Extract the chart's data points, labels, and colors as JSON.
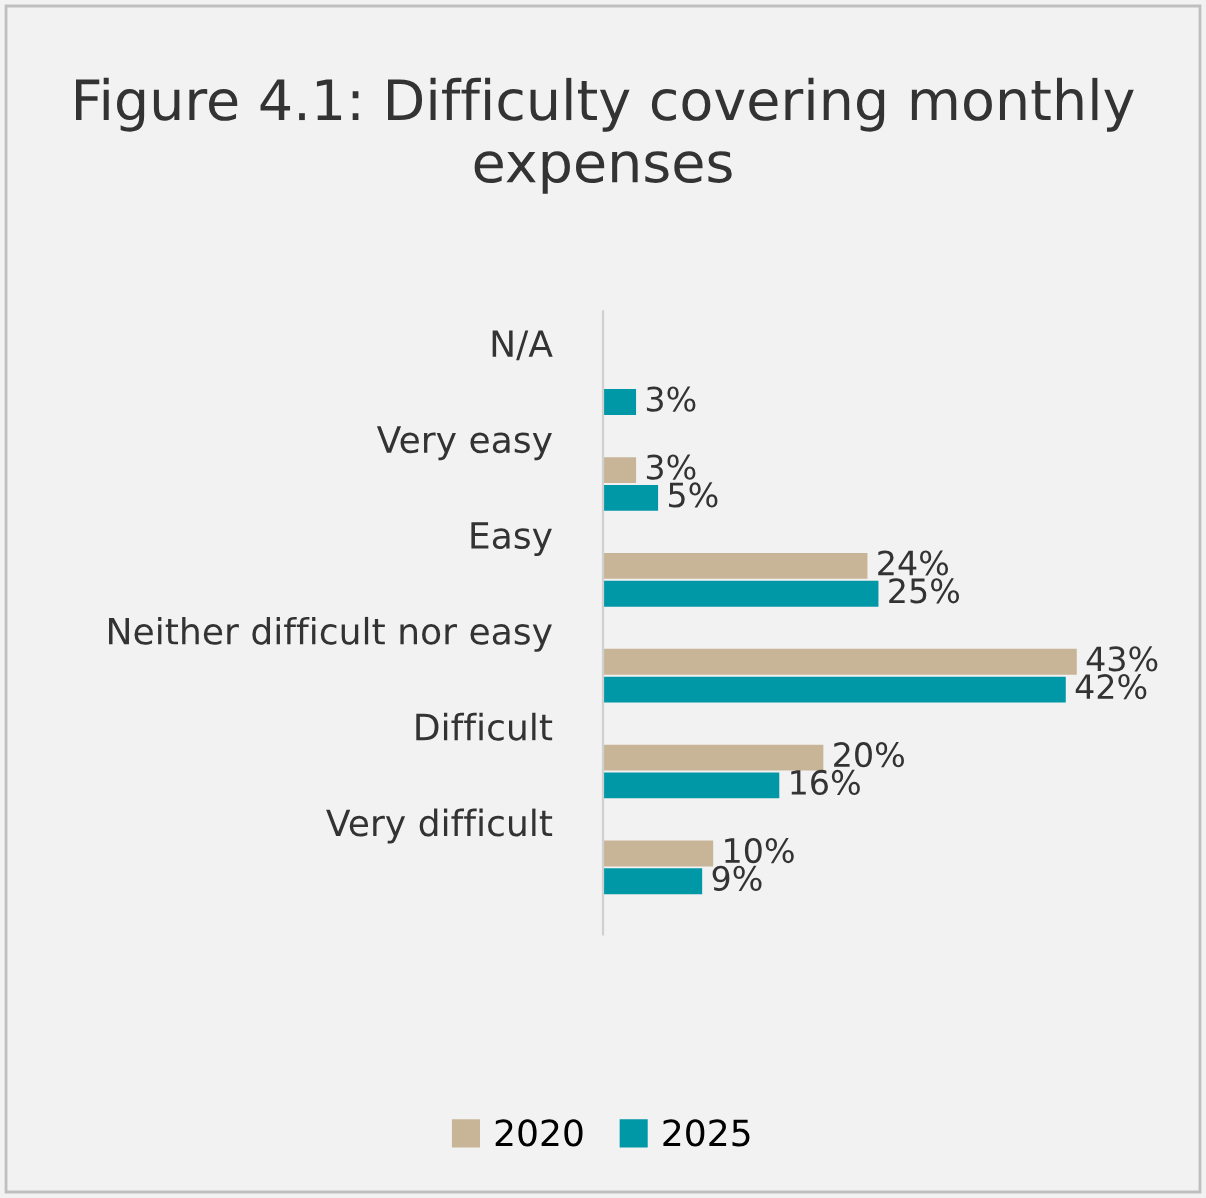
{
  "chart_data": {
    "type": "bar",
    "orientation": "horizontal",
    "title": "Figure 4.1: Difficulty covering monthly expenses",
    "categories": [
      "N/A",
      "Very easy",
      "Easy",
      "Neither difficult nor easy",
      "Difficult",
      "Very difficult"
    ],
    "series": [
      {
        "name": "2020",
        "color": "#c8b597",
        "values": [
          null,
          3,
          24,
          43,
          20,
          10
        ],
        "value_labels": [
          null,
          "3%",
          "24%",
          "43%",
          "20%",
          "10%"
        ]
      },
      {
        "name": "2025",
        "color": "#0097a7",
        "values": [
          3,
          5,
          25,
          42,
          16,
          9
        ],
        "value_labels": [
          "3%",
          "5%",
          "25%",
          "42%",
          "16%",
          "9%"
        ]
      }
    ],
    "legend": "bottom",
    "grid": false
  }
}
